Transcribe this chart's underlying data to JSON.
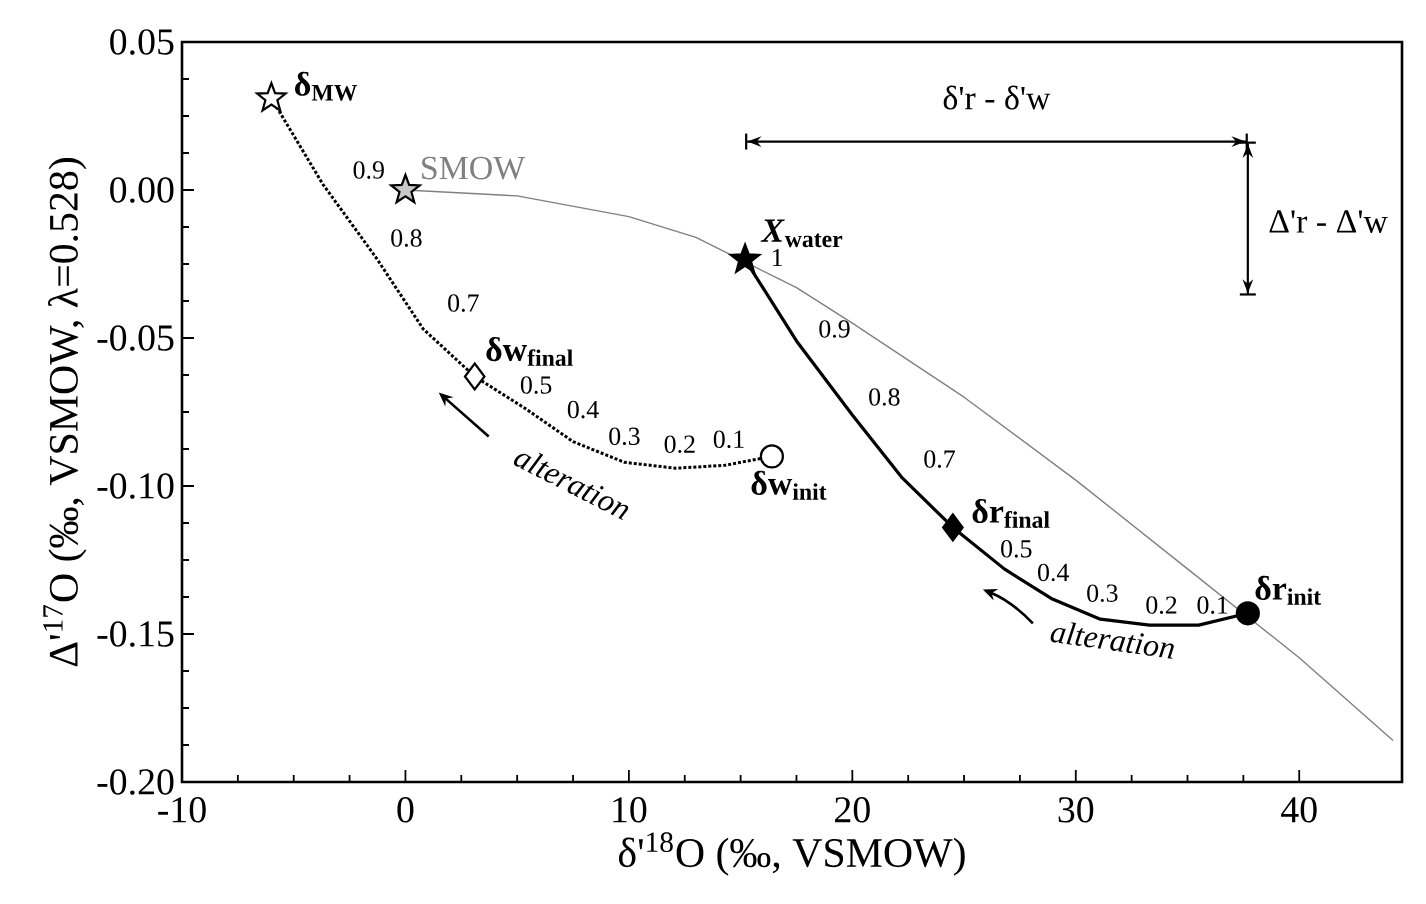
{
  "chart_data": {
    "type": "line",
    "xlabel": "δ'$^{18}$O (‰, VSMOW)",
    "ylabel": "Δ'$^{17}$O (‰, VSMOW, λ=0.528)",
    "xlim": [
      -10,
      44.6
    ],
    "ylim": [
      -0.2,
      0.05
    ],
    "xticks": [
      -10,
      0,
      10,
      20,
      30,
      40
    ],
    "yticks": [
      {
        "value": -0.2,
        "label": "-0.20"
      },
      {
        "value": -0.15,
        "label": "-0.15"
      },
      {
        "value": -0.1,
        "label": "-0.10"
      },
      {
        "value": -0.05,
        "label": "-0.05"
      },
      {
        "value": 0,
        "label": "0.00"
      },
      {
        "value": 0.05,
        "label": "0.05"
      }
    ],
    "grid": false,
    "series": [
      {
        "color": "#808080",
        "line_style": "solid",
        "x": [
          0,
          5,
          10,
          13,
          17.5,
          20,
          25,
          30,
          35,
          40,
          44.2
        ],
        "values": [
          0,
          -0.002,
          -0.009,
          -0.016,
          -0.033,
          -0.045,
          -0.07,
          -0.098,
          -0.128,
          -0.158,
          -0.186
        ]
      },
      {
        "color": "#000000",
        "line_style": "dotted",
        "x": [
          -6.0,
          -3.7,
          -1.3,
          0.8,
          3.1,
          5.4,
          7.5,
          9.8,
          12.1,
          14.3,
          16.4
        ],
        "values": [
          0.031,
          0.002,
          -0.023,
          -0.047,
          -0.063,
          -0.074,
          -0.085,
          -0.092,
          -0.094,
          -0.093,
          -0.09
        ]
      },
      {
        "color": "#000000",
        "line_style": "solid",
        "x": [
          15.2,
          17.5,
          20.0,
          22.2,
          24.5,
          26.8,
          28.9,
          31.1,
          33.3,
          35.5,
          37.7
        ],
        "values": [
          -0.0235,
          -0.051,
          -0.076,
          -0.097,
          -0.114,
          -0.128,
          -0.138,
          -0.145,
          -0.147,
          -0.147,
          -0.143
        ]
      },
      {
        "type": "scatter",
        "name": "δ$_{MW}$",
        "marker": "star",
        "color": "#ffffff",
        "x": [
          -6.0
        ],
        "values": [
          0.031
        ]
      },
      {
        "type": "scatter",
        "name": "SMOW",
        "marker": "star",
        "color": "#c8c8c8",
        "x": [
          0
        ],
        "values": [
          0
        ]
      },
      {
        "type": "scatter",
        "name": "*X*$_{water}$",
        "marker": "star",
        "color": "#000000",
        "x": [
          15.2
        ],
        "values": [
          -0.0235
        ]
      },
      {
        "type": "scatter",
        "name": "δw$_{final}$",
        "marker": "diamond",
        "color": "#ffffff",
        "x": [
          3.1
        ],
        "values": [
          -0.063
        ]
      },
      {
        "type": "scatter",
        "name": "δw$_{init}$",
        "marker": "circle",
        "color": "#ffffff",
        "x": [
          16.4
        ],
        "values": [
          -0.09
        ]
      },
      {
        "type": "scatter",
        "name": "δr$_{final}$",
        "marker": "diamond",
        "color": "#000000",
        "x": [
          24.5
        ],
        "values": [
          -0.114
        ]
      },
      {
        "type": "scatter",
        "name": "δr$_{init}$",
        "marker": "circle",
        "color": "#000000",
        "x": [
          37.7
        ],
        "values": [
          -0.143
        ]
      }
    ],
    "annotations": [
      "0.9",
      "0.8",
      "0.7",
      "0.5",
      "0.4",
      "0.3",
      "0.2",
      "0.1",
      "1",
      "0.9",
      "0.8",
      "0.7",
      "0.5",
      "0.4",
      "0.3",
      "0.2",
      "0.1",
      "alteration",
      "alteration",
      "δ'r - δ'w",
      "Δ'r - Δ'w"
    ]
  }
}
